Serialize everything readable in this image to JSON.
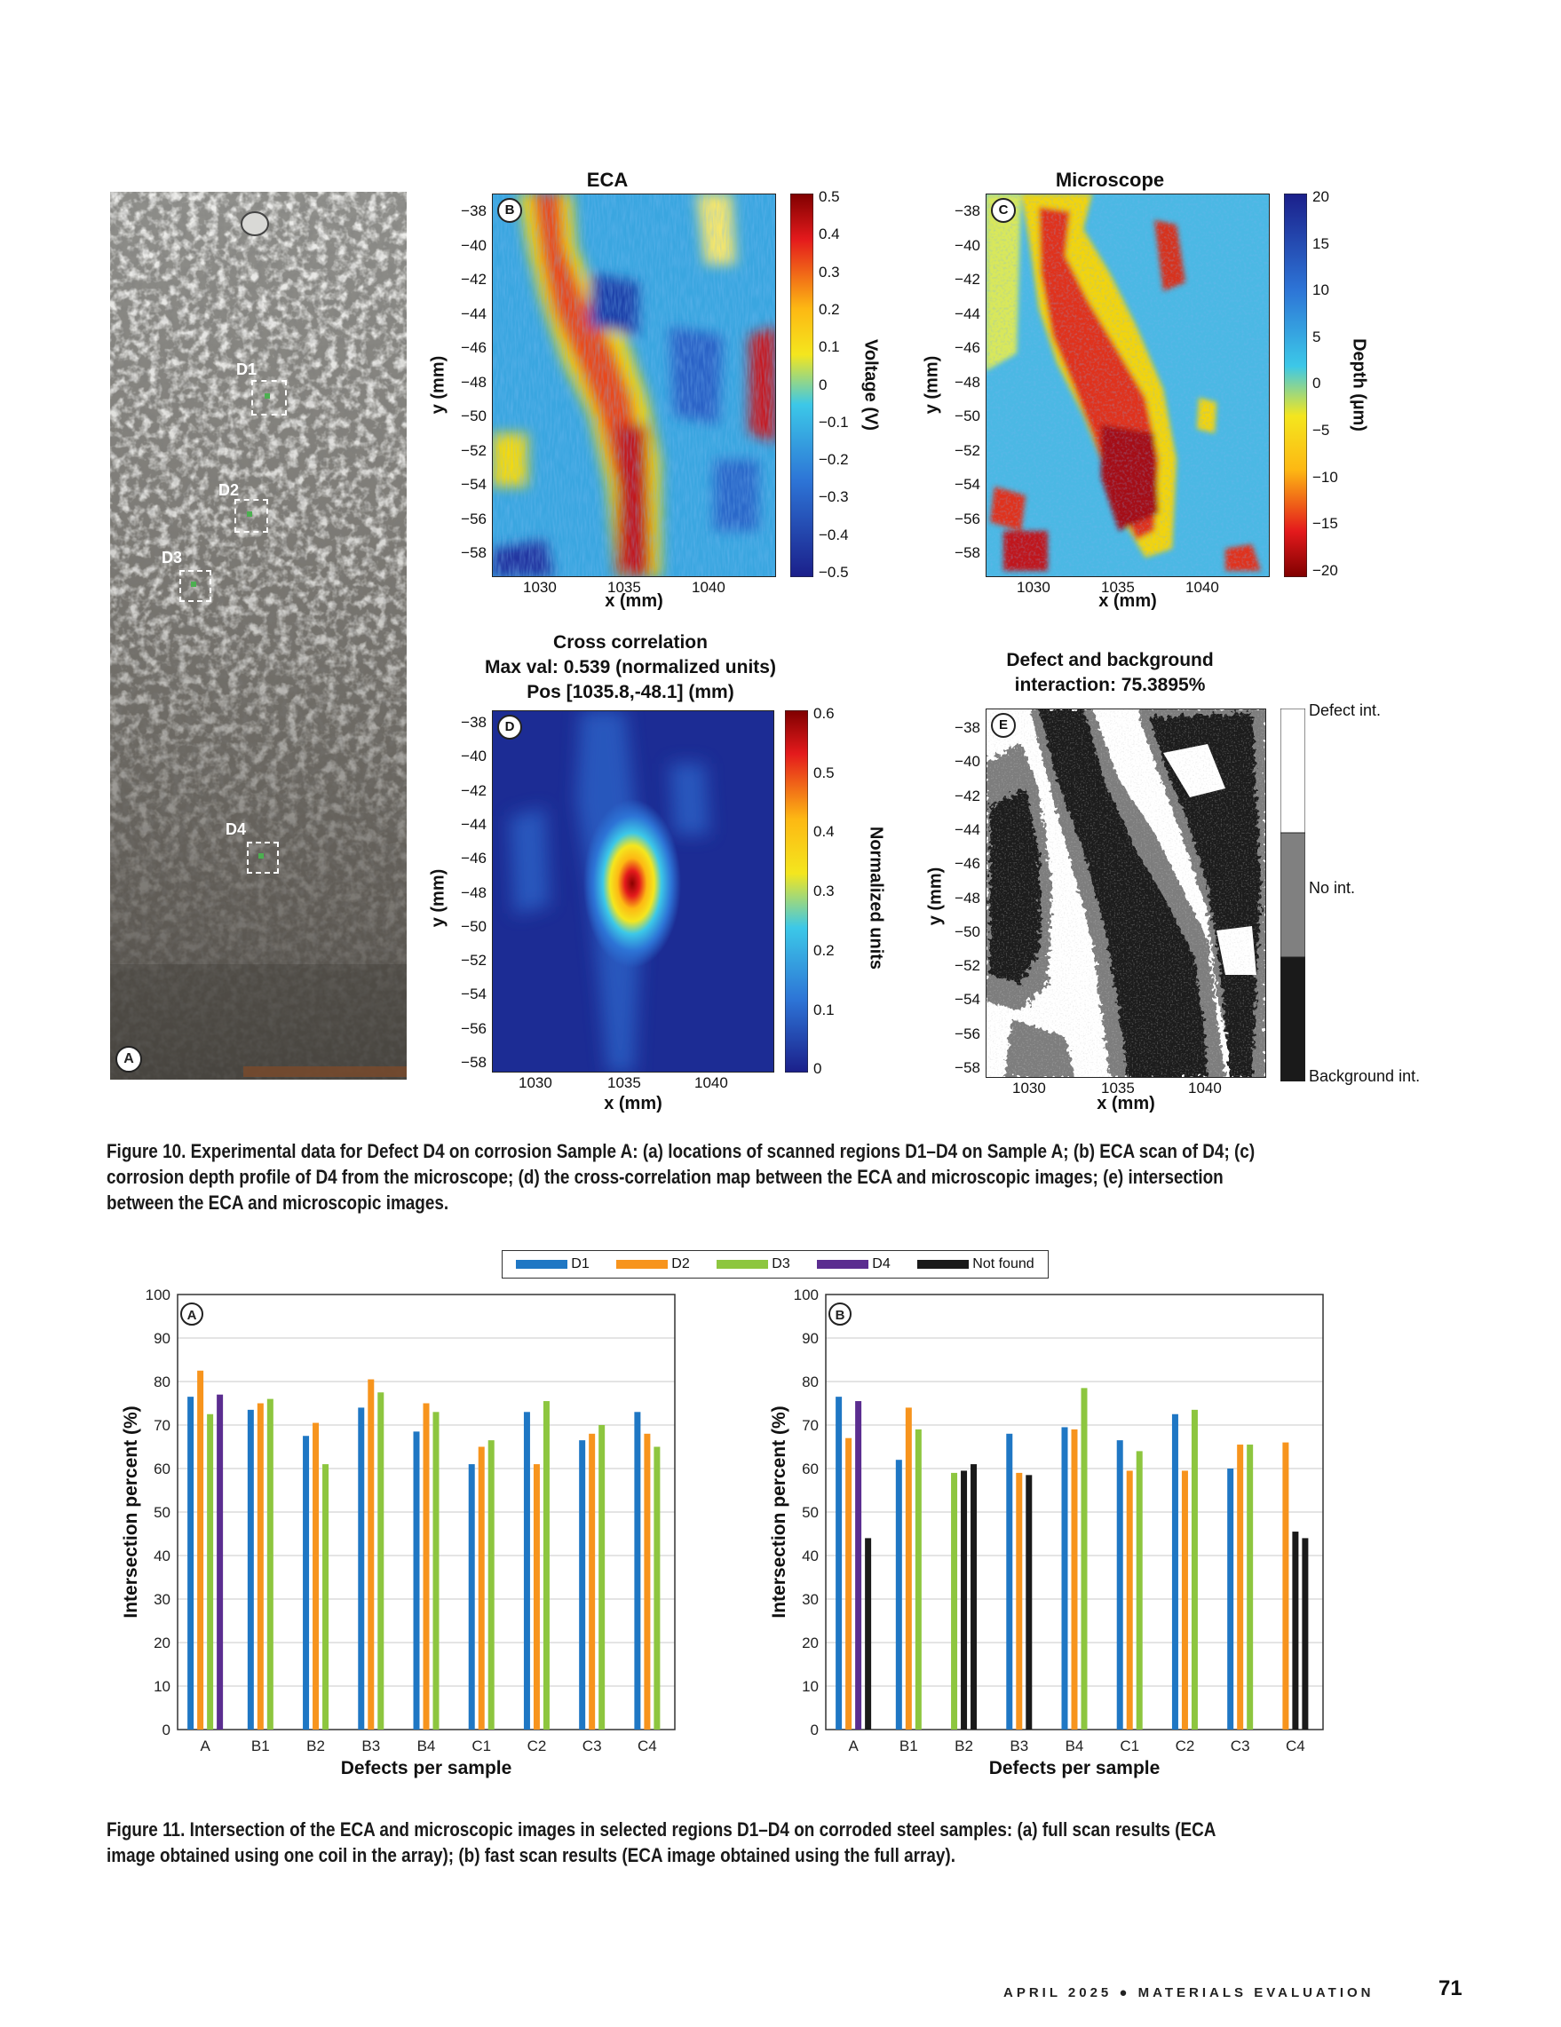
{
  "fig10": {
    "panel_a": {
      "letter": "A",
      "labels": [
        "D1",
        "D2",
        "D3",
        "D4"
      ]
    },
    "panel_b": {
      "letter": "B",
      "title": "ECA",
      "xlabel": "x (mm)",
      "ylabel": "y (mm)",
      "xticks": [
        "1030",
        "1035",
        "1040"
      ],
      "yticks": [
        "−38",
        "−40",
        "−42",
        "−44",
        "−46",
        "−48",
        "−50",
        "−52",
        "−54",
        "−56",
        "−58"
      ],
      "cbar_label": "Voltage (V)",
      "cbar_ticks": [
        "0.5",
        "0.4",
        "0.3",
        "0.2",
        "0.1",
        "0",
        "−0.1",
        "−0.2",
        "−0.3",
        "−0.4",
        "−0.5"
      ]
    },
    "panel_c": {
      "letter": "C",
      "title": "Microscope",
      "xlabel": "x (mm)",
      "ylabel": "y (mm)",
      "xticks": [
        "1030",
        "1035",
        "1040"
      ],
      "yticks": [
        "−38",
        "−40",
        "−42",
        "−44",
        "−46",
        "−48",
        "−50",
        "−52",
        "−54",
        "−56",
        "−58"
      ],
      "cbar_label": "Depth (µm)",
      "cbar_ticks": [
        "20",
        "15",
        "10",
        "5",
        "0",
        "−5",
        "−10",
        "−15",
        "−20"
      ]
    },
    "panel_d": {
      "letter": "D",
      "title_lines": [
        "Cross correlation",
        "Max val: 0.539 (normalized units)",
        "Pos [1035.8,-48.1] (mm)"
      ],
      "xlabel": "x (mm)",
      "ylabel": "y (mm)",
      "xticks": [
        "1030",
        "1035",
        "1040"
      ],
      "yticks": [
        "−38",
        "−40",
        "−42",
        "−44",
        "−46",
        "−48",
        "−50",
        "−52",
        "−54",
        "−56",
        "−58"
      ],
      "cbar_label": "Normalized units",
      "cbar_ticks": [
        "0.6",
        "0.5",
        "0.4",
        "0.3",
        "0.2",
        "0.1",
        "0"
      ]
    },
    "panel_e": {
      "letter": "E",
      "title_lines": [
        "Defect and background",
        "interaction: 75.3895%"
      ],
      "xlabel": "x (mm)",
      "ylabel": "y (mm)",
      "xticks": [
        "1030",
        "1035",
        "1040"
      ],
      "yticks": [
        "−38",
        "−40",
        "−42",
        "−44",
        "−46",
        "−48",
        "−50",
        "−52",
        "−54",
        "−56",
        "−58"
      ],
      "legend": [
        "Defect int.",
        "No int.",
        "Background int."
      ]
    },
    "caption": "Figure 10. Experimental data for Defect D4 on corrosion Sample A: (a) locations of scanned regions D1–D4 on Sample A; (b) ECA scan of D4; (c) corrosion depth profile of D4 from the microscope; (d) the cross-correlation map between the ECA and microscopic images; (e) intersection between the ECA and microscopic images."
  },
  "chart_data": [
    {
      "type": "bar",
      "panel": "A",
      "categories": [
        "A",
        "B1",
        "B2",
        "B3",
        "B4",
        "C1",
        "C2",
        "C3",
        "C4"
      ],
      "series": [
        {
          "name": "D1",
          "color": "#1f77c4",
          "values": [
            76.5,
            73.5,
            67.5,
            74,
            68.5,
            61,
            73,
            66.5,
            73
          ]
        },
        {
          "name": "D2",
          "color": "#f7941d",
          "values": [
            82.5,
            75,
            70.5,
            80.5,
            75,
            65,
            61,
            68,
            68
          ]
        },
        {
          "name": "D3",
          "color": "#8dc63f",
          "values": [
            72.5,
            76,
            61,
            77.5,
            73,
            66.5,
            75.5,
            70,
            65
          ]
        },
        {
          "name": "D4",
          "color": "#5b2d90",
          "values": [
            77,
            null,
            null,
            null,
            null,
            null,
            null,
            null,
            null
          ]
        },
        {
          "name": "Not found",
          "color": "#1a1a1a",
          "values": [
            null,
            null,
            null,
            null,
            null,
            null,
            null,
            null,
            null
          ]
        }
      ],
      "xlabel": "Defects per sample",
      "ylabel": "Intersection percent (%)",
      "ylim": [
        0,
        100
      ],
      "yticks": [
        "0",
        "10",
        "20",
        "30",
        "40",
        "50",
        "60",
        "70",
        "80",
        "90",
        "100"
      ],
      "grid": true
    },
    {
      "type": "bar",
      "panel": "B",
      "categories": [
        "A",
        "B1",
        "B2",
        "B3",
        "B4",
        "C1",
        "C2",
        "C3",
        "C4"
      ],
      "series": [
        {
          "name": "D1",
          "color": "#1f77c4",
          "values": [
            76.5,
            62,
            null,
            68,
            69.5,
            66.5,
            72.5,
            60,
            null
          ]
        },
        {
          "name": "D2",
          "color": "#f7941d",
          "values": [
            67,
            74,
            null,
            59,
            69,
            59.5,
            59.5,
            65.5,
            66
          ]
        },
        {
          "name": "D3",
          "color": "#8dc63f",
          "values": [
            null,
            69,
            59,
            null,
            78.5,
            64,
            73.5,
            65.5,
            null
          ]
        },
        {
          "name": "D4",
          "color": "#5b2d90",
          "values": [
            75.5,
            null,
            null,
            null,
            null,
            null,
            null,
            null,
            null
          ]
        },
        {
          "name": "Not found",
          "color": "#1a1a1a",
          "values": [
            44,
            null,
            [
              59.5,
              61
            ],
            58.5,
            null,
            null,
            null,
            null,
            [
              45.5,
              44
            ]
          ]
        }
      ],
      "xlabel": "Defects per sample",
      "ylabel": "Intersection percent (%)",
      "ylim": [
        0,
        100
      ],
      "yticks": [
        "0",
        "10",
        "20",
        "30",
        "40",
        "50",
        "60",
        "70",
        "80",
        "90",
        "100"
      ],
      "grid": true
    }
  ],
  "fig11": {
    "panel_a_letter": "A",
    "panel_b_letter": "B",
    "legend": [
      "D1",
      "D2",
      "D3",
      "D4",
      "Not found"
    ],
    "caption": "Figure 11. Intersection of the ECA and microscopic images in selected regions D1–D4 on corroded steel samples: (a) full scan results (ECA image obtained using one coil in the array); (b) fast scan results (ECA image obtained using the full array)."
  },
  "footer": {
    "journal": "APRIL 2025 ● MATERIALS EVALUATION",
    "page": "71"
  }
}
